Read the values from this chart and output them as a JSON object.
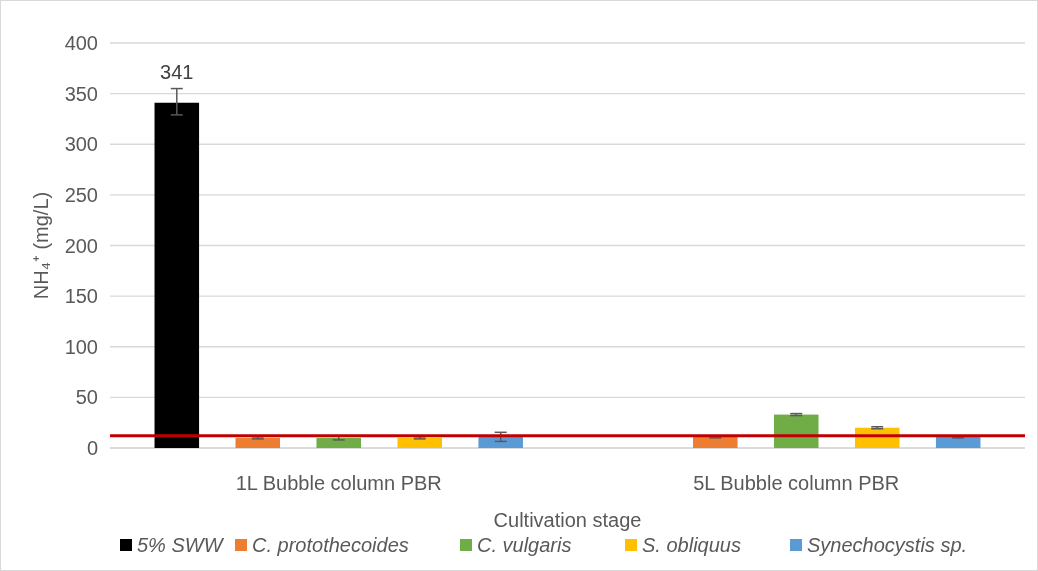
{
  "chart_data": {
    "type": "bar",
    "xlabel": "Cultivation stage",
    "ylabel": "NH₄⁺ (mg/L)",
    "categories": [
      "1L Bubble column PBR",
      "5L Bubble column PBR"
    ],
    "series": [
      {
        "name": "5% SWW",
        "color": "#000000",
        "values": [
          341,
          null
        ],
        "errors": [
          [
            329,
            355
          ],
          null
        ],
        "value_labels": [
          "341",
          null
        ]
      },
      {
        "name": "C. protothecoides",
        "color": "#ed7d31",
        "values": [
          10,
          11
        ],
        "errors": [
          1,
          1
        ]
      },
      {
        "name": "C. vulgaris",
        "color": "#70ad47",
        "values": [
          10,
          33
        ],
        "errors": [
          2,
          1
        ]
      },
      {
        "name": "S. obliquus",
        "color": "#ffc000",
        "values": [
          10,
          20
        ],
        "errors": [
          1,
          1
        ]
      },
      {
        "name": "Synechocystis sp.",
        "color": "#5b9bd5",
        "values": [
          11,
          11
        ],
        "errors": [
          4.5,
          1
        ]
      }
    ],
    "ylim": [
      0,
      400
    ],
    "yticks": [
      0,
      50,
      100,
      150,
      200,
      250,
      300,
      350,
      400
    ],
    "grid": "y",
    "legend": "bottom",
    "ref_lines": [
      {
        "axis": "y",
        "value": 12,
        "color": "#c00000"
      }
    ]
  }
}
